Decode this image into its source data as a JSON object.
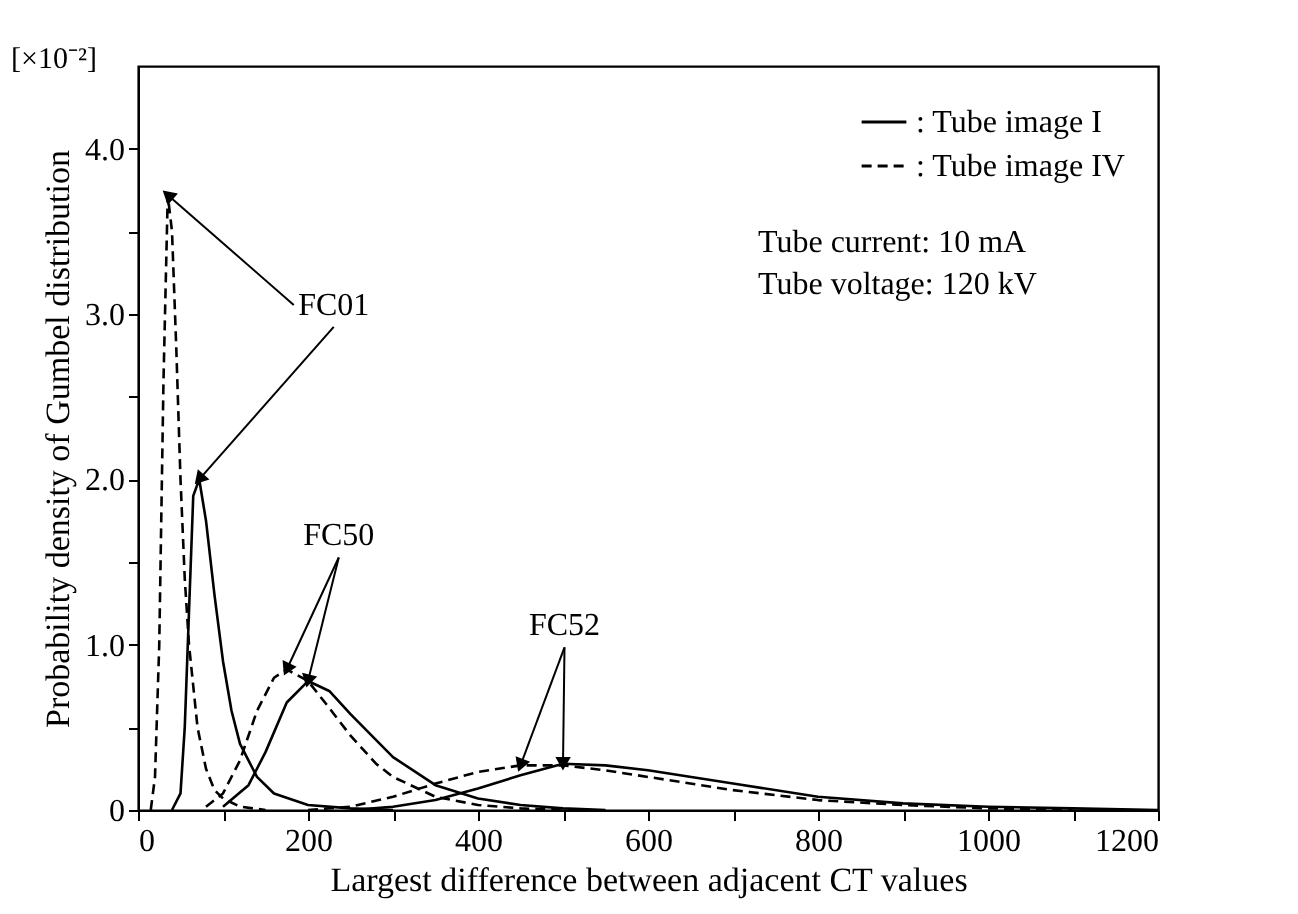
{
  "chart_data": {
    "type": "line",
    "xlabel": "Largest difference between adjacent CT values",
    "ylabel": "Probability density of Gumbel distribution",
    "xlim": [
      0,
      1200
    ],
    "ylim": [
      0,
      4.5
    ],
    "xticks": [
      0,
      {
        "value": 100,
        "label": null
      },
      200,
      {
        "value": 300,
        "label": null
      },
      400,
      {
        "value": 500,
        "label": null
      },
      600,
      {
        "value": 700,
        "label": null
      },
      800,
      {
        "value": 900,
        "label": null
      },
      1000,
      {
        "value": 1100,
        "label": null
      },
      1200
    ],
    "yticks": [
      0,
      {
        "value": 0.5,
        "label": null
      },
      {
        "value": 1,
        "label": "1.0"
      },
      {
        "value": 1.5,
        "label": null
      },
      {
        "value": 2,
        "label": "2.0"
      },
      {
        "value": 2.5,
        "label": null
      },
      {
        "value": 3,
        "label": "3.0"
      },
      {
        "value": 3.5,
        "label": null
      },
      {
        "value": 4,
        "label": "4.0"
      }
    ],
    "grid": false,
    "legend": "top right",
    "marker": "none",
    "series": [
      {
        "name": ": Tube image I",
        "color": "#000000",
        "line_style": "solid",
        "x": [
          40,
          50,
          55,
          60,
          65,
          72,
          80,
          90,
          100,
          110,
          120,
          140,
          160,
          200,
          250,
          300
        ],
        "values": [
          0,
          0.1,
          0.5,
          1.2,
          1.9,
          2.0,
          1.75,
          1.3,
          0.9,
          0.6,
          0.4,
          0.2,
          0.1,
          0.03,
          0.01,
          0
        ]
      },
      {
        "name": ": Tube image IV",
        "color": "#000000",
        "line_style": "dashed",
        "x": [
          15,
          20,
          25,
          30,
          35,
          40,
          45,
          50,
          55,
          60,
          70,
          80,
          90,
          100,
          120,
          150
        ],
        "values": [
          0,
          0.2,
          1.0,
          2.6,
          3.72,
          3.5,
          2.8,
          2.0,
          1.4,
          1.0,
          0.5,
          0.25,
          0.12,
          0.07,
          0.02,
          0
        ]
      },
      {
        "color": "#000000",
        "line_style": "solid",
        "x": [
          100,
          130,
          150,
          175,
          200,
          225,
          250,
          300,
          350,
          400,
          450,
          500,
          550
        ],
        "values": [
          0.02,
          0.15,
          0.35,
          0.65,
          0.78,
          0.72,
          0.58,
          0.32,
          0.15,
          0.07,
          0.03,
          0.01,
          0
        ]
      },
      {
        "color": "#000000",
        "line_style": "dashed",
        "x": [
          80,
          100,
          120,
          140,
          160,
          175,
          200,
          220,
          250,
          280,
          300,
          350,
          400,
          450,
          500
        ],
        "values": [
          0.02,
          0.1,
          0.3,
          0.6,
          0.8,
          0.85,
          0.78,
          0.65,
          0.45,
          0.28,
          0.2,
          0.08,
          0.03,
          0.01,
          0
        ]
      },
      {
        "color": "#000000",
        "line_style": "solid",
        "x": [
          250,
          300,
          350,
          400,
          450,
          500,
          550,
          600,
          700,
          800,
          900,
          1000,
          1100,
          1200
        ],
        "values": [
          0,
          0.02,
          0.06,
          0.13,
          0.21,
          0.28,
          0.27,
          0.24,
          0.16,
          0.08,
          0.04,
          0.02,
          0.01,
          0
        ]
      },
      {
        "color": "#000000",
        "line_style": "dashed",
        "x": [
          200,
          250,
          300,
          350,
          400,
          450,
          500,
          550,
          600,
          700,
          800,
          900,
          1000,
          1100
        ],
        "values": [
          0,
          0.02,
          0.08,
          0.16,
          0.23,
          0.27,
          0.27,
          0.24,
          0.2,
          0.12,
          0.06,
          0.03,
          0.01,
          0
        ]
      }
    ],
    "annotations": [
      {
        "text": "FC01",
        "x": 35,
        "y": 3.72
      },
      {
        "text": "FC50",
        "x": 175,
        "y": 0.85
      },
      {
        "text": "FC52",
        "x": 450,
        "y": 0.27
      },
      "[×10⁻²]",
      "Tube  current: 10 mA",
      "Tube  voltage: 120 kV"
    ]
  }
}
